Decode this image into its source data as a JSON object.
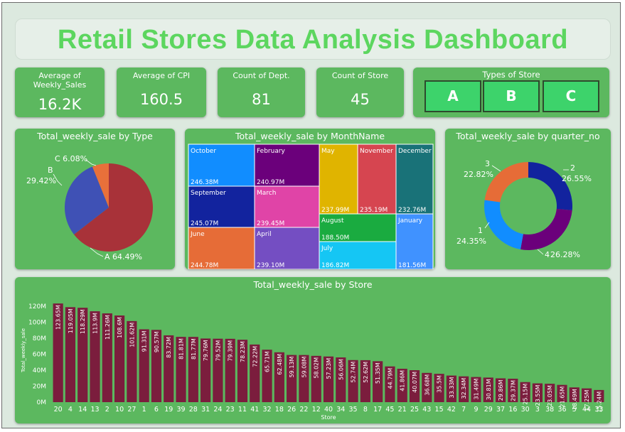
{
  "header": {
    "title": "Retail Stores Data Analysis Dashboard"
  },
  "kpis": [
    {
      "label": "Average of Weekly_Sales",
      "value": "16.2K"
    },
    {
      "label": "Average of CPI",
      "value": "160.5"
    },
    {
      "label": "Count of Dept.",
      "value": "81"
    },
    {
      "label": "Count of Store",
      "value": "45"
    }
  ],
  "store_types": {
    "label": "Types of Store",
    "options": [
      "A",
      "B",
      "C"
    ]
  },
  "colors": {
    "panel": "#5cb85f",
    "title": "#5cd65f",
    "bar": "#7b1d3d",
    "type_button": "#3dd36b"
  },
  "chart_data": [
    {
      "type": "pie",
      "title": "Total_weekly_sale by Type",
      "labels": [
        "A",
        "B",
        "C"
      ],
      "values": [
        64.49,
        29.42,
        6.08
      ],
      "value_labels": [
        "64.49%",
        "29.42%",
        "6.08%"
      ],
      "colors": [
        "#a83239",
        "#3f51b5",
        "#e8703a"
      ]
    },
    {
      "type": "treemap",
      "title": "Total_weekly_sale by MonthName",
      "items": [
        {
          "name": "October",
          "label": "246.38M",
          "value": 246.38,
          "color": "#118dff"
        },
        {
          "name": "February",
          "label": "240.97M",
          "value": 240.97,
          "color": "#6b007b"
        },
        {
          "name": "May",
          "label": "237.99M",
          "value": 237.99,
          "color": "#e0b400"
        },
        {
          "name": "November",
          "label": "235.19M",
          "value": 235.19,
          "color": "#d64550"
        },
        {
          "name": "December",
          "label": "232.76M",
          "value": 232.76,
          "color": "#197278"
        },
        {
          "name": "September",
          "label": "245.07M",
          "value": 245.07,
          "color": "#12239e"
        },
        {
          "name": "March",
          "label": "239.45M",
          "value": 239.45,
          "color": "#e044a7"
        },
        {
          "name": "June",
          "label": "244.78M",
          "value": 244.78,
          "color": "#e66c37"
        },
        {
          "name": "April",
          "label": "239.10M",
          "value": 239.1,
          "color": "#744ec2"
        },
        {
          "name": "August",
          "label": "188.50M",
          "value": 188.5,
          "color": "#1aab40"
        },
        {
          "name": "July",
          "label": "186.82M",
          "value": 186.82,
          "color": "#15c6f4"
        },
        {
          "name": "January",
          "label": "181.56M",
          "value": 181.56,
          "color": "#4092ff"
        }
      ]
    },
    {
      "type": "pie",
      "subtype": "donut",
      "title": "Total_weekly_sale by quarter_no",
      "labels": [
        "2",
        "4",
        "1",
        "3"
      ],
      "values": [
        26.55,
        26.28,
        24.35,
        22.82
      ],
      "value_labels": [
        "26.55%",
        "26.28%",
        "24.35%",
        "22.82%"
      ],
      "colors": [
        "#12239e",
        "#6b007b",
        "#118dff",
        "#e66c37"
      ]
    },
    {
      "type": "bar",
      "title": "Total_weekly_sale by Store",
      "xlabel": "Store",
      "ylabel": "Total_weekly_sale",
      "ylim": [
        0,
        130
      ],
      "yticks": [
        "0M",
        "20M",
        "40M",
        "60M",
        "80M",
        "100M",
        "120M"
      ],
      "categories": [
        "20",
        "4",
        "14",
        "13",
        "2",
        "10",
        "27",
        "1",
        "6",
        "19",
        "39",
        "28",
        "31",
        "24",
        "23",
        "11",
        "41",
        "32",
        "18",
        "26",
        "22",
        "12",
        "40",
        "34",
        "35",
        "8",
        "17",
        "45",
        "21",
        "25",
        "43",
        "15",
        "42",
        "7",
        "9",
        "29",
        "37",
        "16",
        "30",
        "3",
        "38",
        "36",
        "5",
        "44",
        "33"
      ],
      "values": [
        123.65,
        119.05,
        118.29,
        113.9,
        111.26,
        108.6,
        101.62,
        91.31,
        90.57,
        83.72,
        81.81,
        81.77,
        79.76,
        79.52,
        79.39,
        78.23,
        72.22,
        65.71,
        62.48,
        59.13,
        59.08,
        58.02,
        57.23,
        56.06,
        52.74,
        52.62,
        51.35,
        44.79,
        41.86,
        40.07,
        36.68,
        35.5,
        33.33,
        32.34,
        31.49,
        30.81,
        29.86,
        29.37,
        25.15,
        23.55,
        23.05,
        21.65,
        18.49,
        17.25,
        15.24
      ],
      "value_labels": [
        "123.65M",
        "119.05M",
        "118.29M",
        "113.9M",
        "111.26M",
        "108.6M",
        "101.62M",
        "91.31M",
        "90.57M",
        "83.72M",
        "81.81M",
        "81.77M",
        "79.76M",
        "79.52M",
        "79.39M",
        "78.23M",
        "72.22M",
        "65.71M",
        "62.48M",
        "59.13M",
        "59.08M",
        "58.02M",
        "57.23M",
        "56.06M",
        "52.74M",
        "52.62M",
        "51.35M",
        "44.79M",
        "41.86M",
        "40.07M",
        "36.68M",
        "35.5M",
        "33.33M",
        "32.34M",
        "31.49M",
        "30.81M",
        "29.86M",
        "29.37M",
        "25.15M",
        "23.55M",
        "23.05M",
        "21.65M",
        "18.49M",
        "17.25M",
        "15.24M"
      ],
      "color": "#7b1d3d"
    }
  ]
}
